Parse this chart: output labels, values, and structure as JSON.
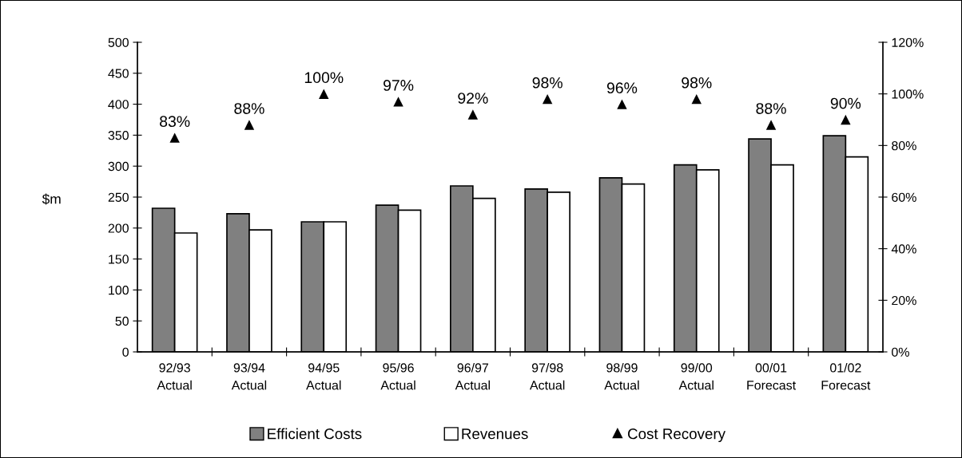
{
  "chart_data": {
    "type": "bar",
    "categories": [
      "92/93\nActual",
      "93/94\nActual",
      "94/95\nActual",
      "95/96\nActual",
      "96/97\nActual",
      "97/98\nActual",
      "98/99\nActual",
      "99/00\nActual",
      "00/01\nForecast",
      "01/02\nForecast"
    ],
    "ylabel": "$m",
    "ylim": [
      0,
      500
    ],
    "yticks": [
      0,
      50,
      100,
      150,
      200,
      250,
      300,
      350,
      400,
      450,
      500
    ],
    "y2lim": [
      0,
      120
    ],
    "y2ticks": [
      {
        "value": 0,
        "label": "0%"
      },
      {
        "value": 20,
        "label": "20%"
      },
      {
        "value": 40,
        "label": "40%"
      },
      {
        "value": 60,
        "label": "60%"
      },
      {
        "value": 80,
        "label": "80%"
      },
      {
        "value": 100,
        "label": "100%"
      },
      {
        "value": 120,
        "label": "120%"
      }
    ],
    "series": [
      {
        "name": "Efficient Costs",
        "color": "#808080",
        "values": [
          232,
          223,
          210,
          237,
          268,
          263,
          281,
          302,
          344,
          349
        ]
      },
      {
        "name": "Revenues",
        "color": "#ffffff",
        "values": [
          192,
          197,
          210,
          229,
          248,
          258,
          271,
          294,
          302,
          315
        ]
      },
      {
        "name": "Cost Recovery",
        "type": "scatter",
        "axis": "y2",
        "marker": "triangle",
        "color": "#000000",
        "values": [
          83,
          88,
          100,
          97,
          92,
          98,
          96,
          98,
          88,
          90
        ],
        "value_labels": [
          "83%",
          "88%",
          "100%",
          "97%",
          "92%",
          "98%",
          "96%",
          "98%",
          "88%",
          "90%"
        ]
      }
    ],
    "legend": "bottom",
    "grid": false
  }
}
